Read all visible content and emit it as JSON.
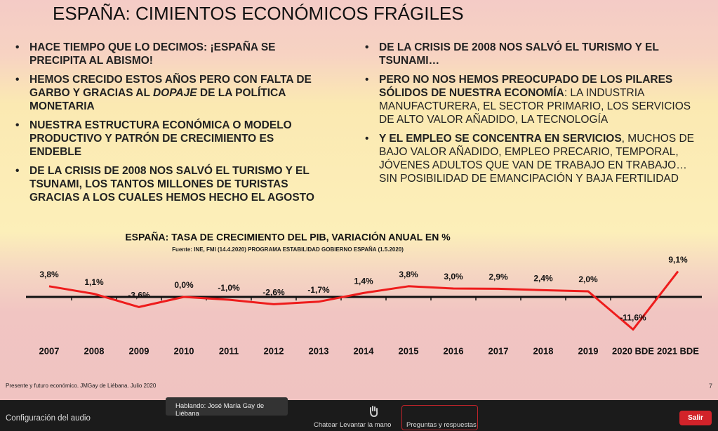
{
  "slide": {
    "title": "ESPAÑA: CIMIENTOS ECONÓMICOS FRÁGILES",
    "left_bullets": [
      [
        "HACE TIEMPO QUE LO DECIMOS: ¡ESPAÑA SE PRECIPITA AL ABISMO!"
      ],
      [
        "HEMOS CRECIDO ESTOS AÑOS PERO CON FALTA DE GARBO Y GRACIAS AL ",
        "DOPAJE",
        " DE LA POLÍTICA MONETARIA"
      ],
      [
        "NUESTRA ESTRUCTURA ECONÓMICA O MODELO PRODUCTIVO Y PATRÓN DE CRECIMIENTO ES ENDEBLE"
      ],
      [
        "DE LA CRISIS DE 2008 NOS SALVÓ EL TURISMO Y EL TSUNAMI, LOS TANTOS MILLONES DE TURISTAS GRACIAS A LOS CUALES HEMOS HECHO EL AGOSTO"
      ]
    ],
    "right_bullets": [
      [
        "DE LA CRISIS DE 2008 NOS SALVÓ EL TURISMO Y EL TSUNAMI…"
      ],
      [
        "PERO NO NOS HEMOS PREOCUPADO DE LOS PILARES SÓLIDOS DE NUESTRA ECONOMÍA",
        ": LA INDUSTRIA MANUFACTURERA, EL SECTOR PRIMARIO, LOS SERVICIOS DE ALTO VALOR AÑADIDO, LA TECNOLOGÍA"
      ],
      [
        "Y EL EMPLEO SE CONCENTRA EN SERVICIOS",
        ", MUCHOS DE BAJO VALOR AÑADIDO, EMPLEO PRECARIO, TEMPORAL, JÓVENES ADULTOS QUE VAN DE TRABAJO EN TRABAJO… SIN POSIBILIDAD DE EMANCIPACIÓN Y BAJA FERTILIDAD"
      ]
    ],
    "footer": "Presente y futuro económico. JMGay de Liébana. Julio 2020",
    "page_number": 7
  },
  "chart_data": {
    "type": "line",
    "title": "ESPAÑA: TASA DE CRECIMIENTO DEL PIB, VARIACIÓN ANUAL EN %",
    "subtitle": "Fuente: INE, FMI (14.4.2020) PROGRAMA ESTABILIDAD GOBIERNO ESPAÑA (1.5.2020)",
    "categories": [
      "2007",
      "2008",
      "2009",
      "2010",
      "2011",
      "2012",
      "2013",
      "2014",
      "2015",
      "2016",
      "2017",
      "2018",
      "2019",
      "2020 BDE",
      "2021 BDE"
    ],
    "values": [
      3.8,
      1.1,
      -3.6,
      0.0,
      -1.0,
      -2.6,
      -1.7,
      1.4,
      3.8,
      3.0,
      2.9,
      2.4,
      2.0,
      -11.6,
      9.1
    ],
    "value_labels": [
      "3,8%",
      "1,1%",
      "-3,6%",
      "0,0%",
      "-1,0%",
      "-2,6%",
      "-1,7%",
      "1,4%",
      "3,8%",
      "3,0%",
      "2,9%",
      "2,4%",
      "2,0%",
      "-11,6%",
      "9,1%"
    ],
    "color": "#ee1c1c",
    "ylim": [
      -14,
      12
    ]
  },
  "toolbar": {
    "audio": "Configuración del audio",
    "speaking": "Hablando: José María Gay de Liébana",
    "chat": "Chatear",
    "raise_hand": "Levantar la mano",
    "qa": "Preguntas y respuestas",
    "leave": "Salir"
  }
}
